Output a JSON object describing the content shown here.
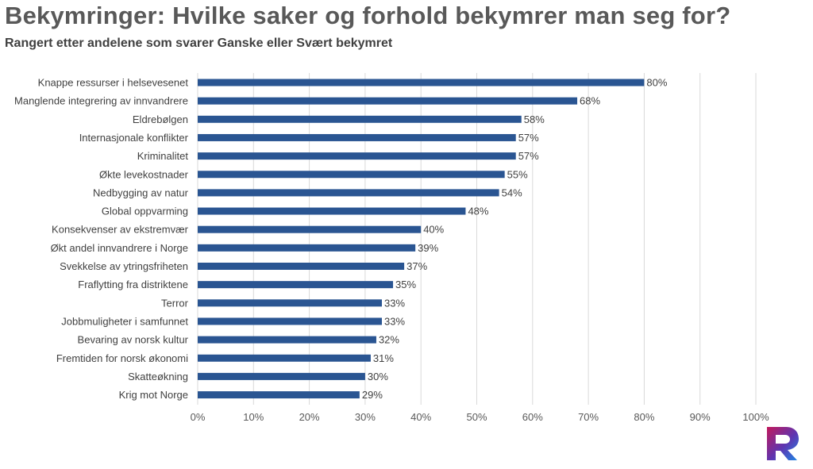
{
  "title": "Bekymringer: Hvilke saker og forhold bekymrer man seg for?",
  "subtitle": "Rangert etter andelene som svarer Ganske eller Svært bekymret",
  "logo": {
    "icon": "r-logo-icon",
    "colors": [
      "#c2185b",
      "#5e35b1",
      "#1e88e5"
    ]
  },
  "chart_data": {
    "type": "bar",
    "orientation": "horizontal",
    "title": "Bekymringer: Hvilke saker og forhold bekymrer man seg for?",
    "subtitle": "Rangert etter andelene som svarer Ganske eller Svært bekymret",
    "categories": [
      "Knappe ressurser i helsevesenet",
      "Manglende integrering av innvandrere",
      "Eldrebølgen",
      "Internasjonale konflikter",
      "Kriminalitet",
      "Økte levekostnader",
      "Nedbygging av natur",
      "Global oppvarming",
      "Konsekvenser av ekstremvær",
      "Økt andel innvandrere i Norge",
      "Svekkelse av ytringsfriheten",
      "Fraflytting fra distriktene",
      "Terror",
      "Jobbmuligheter i samfunnet",
      "Bevaring av norsk kultur",
      "Fremtiden for norsk økonomi",
      "Skatteøkning",
      "Krig mot Norge"
    ],
    "values": [
      80,
      68,
      58,
      57,
      57,
      55,
      54,
      48,
      40,
      39,
      37,
      35,
      33,
      33,
      32,
      31,
      30,
      29
    ],
    "value_labels": [
      "80%",
      "68%",
      "58%",
      "57%",
      "57%",
      "55%",
      "54%",
      "48%",
      "40%",
      "39%",
      "37%",
      "35%",
      "33%",
      "33%",
      "32%",
      "31%",
      "30%",
      "29%"
    ],
    "x_ticks": [
      "0%",
      "10%",
      "20%",
      "30%",
      "40%",
      "50%",
      "60%",
      "70%",
      "80%",
      "90%",
      "100%"
    ],
    "xlim": [
      0,
      100
    ],
    "grid": true,
    "bar_color": "#2a5592"
  }
}
